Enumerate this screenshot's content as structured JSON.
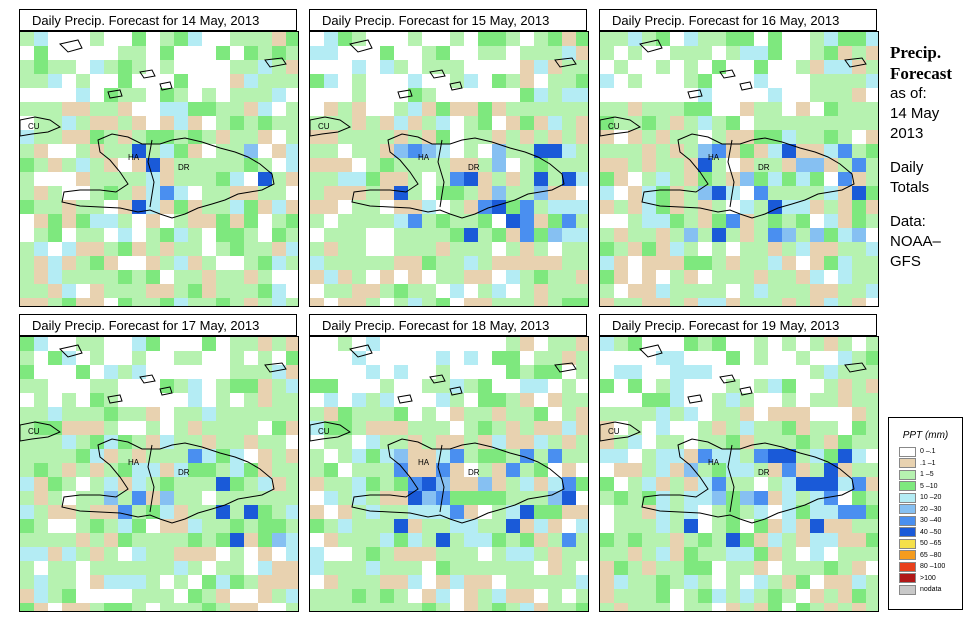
{
  "panels": [
    {
      "title": "Daily Precip. Forecast for  14 May, 2013",
      "seed": 11,
      "wet": 0.2
    },
    {
      "title": "Daily Precip. Forecast for  15 May, 2013",
      "seed": 23,
      "wet": 0.3
    },
    {
      "title": "Daily Precip. Forecast for  16 May, 2013",
      "seed": 37,
      "wet": 0.35
    },
    {
      "title": "Daily Precip. Forecast for  17 May, 2013",
      "seed": 41,
      "wet": 0.25
    },
    {
      "title": "Daily Precip. Forecast for  18 May, 2013",
      "seed": 53,
      "wet": 0.4
    },
    {
      "title": "Daily Precip. Forecast for  19 May, 2013",
      "seed": 67,
      "wet": 0.55
    }
  ],
  "map_labels": {
    "cuba": "CU",
    "haiti": "HA",
    "dominican": "DR"
  },
  "side": {
    "title_line1": "Precip.",
    "title_line2": "Forecast",
    "asof": "as of:",
    "date1": "14 May",
    "date2": "2013",
    "totals1": "Daily",
    "totals2": "Totals",
    "data1": "Data:",
    "data2": "NOAA–",
    "data3": "GFS"
  },
  "legend": {
    "title": "PPT (mm)",
    "items": [
      {
        "label": "0 –.1",
        "color": "#ffffff"
      },
      {
        "label": ".1 –1",
        "color": "#e8d2b0"
      },
      {
        "label": "1 –5",
        "color": "#b6f2b0"
      },
      {
        "label": "5 –10",
        "color": "#7ee87e"
      },
      {
        "label": "10 –20",
        "color": "#b4ecf4"
      },
      {
        "label": "20 –30",
        "color": "#86c0f2"
      },
      {
        "label": "30 –40",
        "color": "#4a8ff0"
      },
      {
        "label": "40 –50",
        "color": "#1a5ad8"
      },
      {
        "label": "50 –65",
        "color": "#f5e04a"
      },
      {
        "label": "65 –80",
        "color": "#f59c1e"
      },
      {
        "label": "80 –100",
        "color": "#e8401c"
      },
      {
        "label": ">100",
        "color": "#b01818"
      },
      {
        "label": "nodata",
        "color": "#c8c8c8"
      }
    ]
  }
}
